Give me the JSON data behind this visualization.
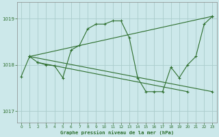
{
  "title": "Graphe pression niveau de la mer (hPa)",
  "background_color": "#cce8ea",
  "grid_color": "#aacccc",
  "line_color": "#2d6e2d",
  "xlim": [
    -0.5,
    23.5
  ],
  "ylim": [
    1016.75,
    1019.35
  ],
  "yticks": [
    1017,
    1018,
    1019
  ],
  "xticks": [
    0,
    1,
    2,
    3,
    4,
    5,
    6,
    7,
    8,
    9,
    10,
    11,
    12,
    13,
    14,
    15,
    16,
    17,
    18,
    19,
    20,
    21,
    22,
    23
  ],
  "series1_x": [
    0,
    1,
    2,
    3,
    4,
    5,
    6,
    7,
    8,
    9,
    10,
    11,
    12,
    13,
    14,
    15,
    16,
    17,
    18,
    19,
    20,
    21,
    22,
    23
  ],
  "series1_y": [
    1017.75,
    1018.18,
    1018.05,
    1018.0,
    1017.98,
    1017.72,
    1018.32,
    1018.42,
    1018.78,
    1018.88,
    1018.88,
    1018.95,
    1018.95,
    1018.58,
    1017.72,
    1017.42,
    1017.42,
    1017.42,
    1017.95,
    1017.72,
    1018.0,
    1018.18,
    1018.88,
    1019.05
  ],
  "line2_x": [
    1,
    23
  ],
  "line2_y": [
    1018.18,
    1019.05
  ],
  "line3_x": [
    1,
    23
  ],
  "line3_y": [
    1018.18,
    1017.42
  ],
  "line4_x": [
    2,
    20
  ],
  "line4_y": [
    1018.05,
    1017.42
  ]
}
